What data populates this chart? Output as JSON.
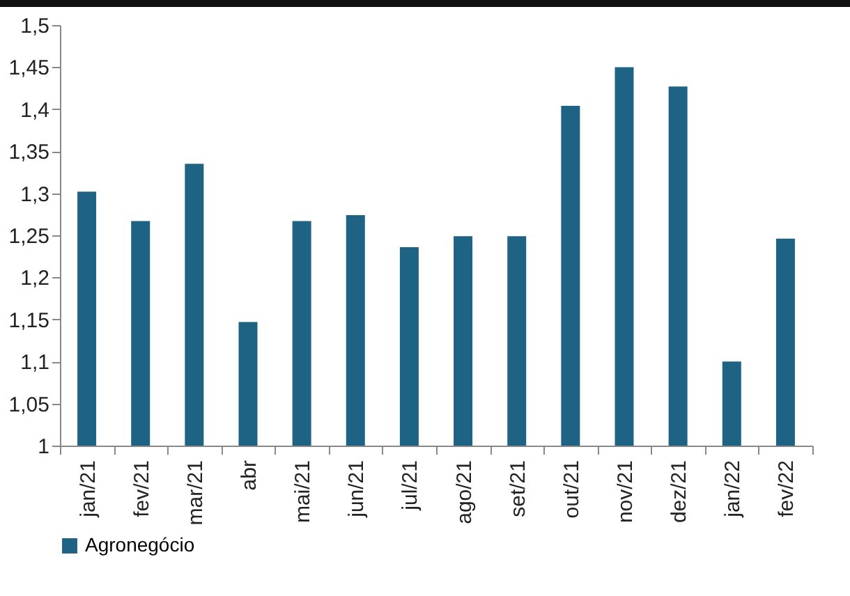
{
  "chart_data": {
    "type": "bar",
    "categories": [
      "jan/21",
      "fev/21",
      "mar/21",
      "abr",
      "mai/21",
      "jun/21",
      "jul/21",
      "ago/21",
      "set/21",
      "out/21",
      "nov/21",
      "dez/21",
      "jan/22",
      "fev/22"
    ],
    "series": [
      {
        "name": "Agronegócio",
        "color": "#1f6384",
        "values": [
          1.302,
          1.267,
          1.335,
          1.147,
          1.267,
          1.274,
          1.236,
          1.249,
          1.249,
          1.404,
          1.45,
          1.427,
          1.1,
          1.246
        ]
      }
    ],
    "ylim": [
      1,
      1.5
    ],
    "yticks": [
      {
        "value": 1,
        "label": "1"
      },
      {
        "value": 1.05,
        "label": "1,05"
      },
      {
        "value": 1.1,
        "label": "1,1"
      },
      {
        "value": 1.15,
        "label": "1,15"
      },
      {
        "value": 1.2,
        "label": "1,2"
      },
      {
        "value": 1.25,
        "label": "1,25"
      },
      {
        "value": 1.3,
        "label": "1,3"
      },
      {
        "value": 1.35,
        "label": "1,35"
      },
      {
        "value": 1.4,
        "label": "1,4"
      },
      {
        "value": 1.45,
        "label": "1,45"
      },
      {
        "value": 1.5,
        "label": "1,5"
      }
    ],
    "grid": false,
    "legend": "bottom"
  }
}
